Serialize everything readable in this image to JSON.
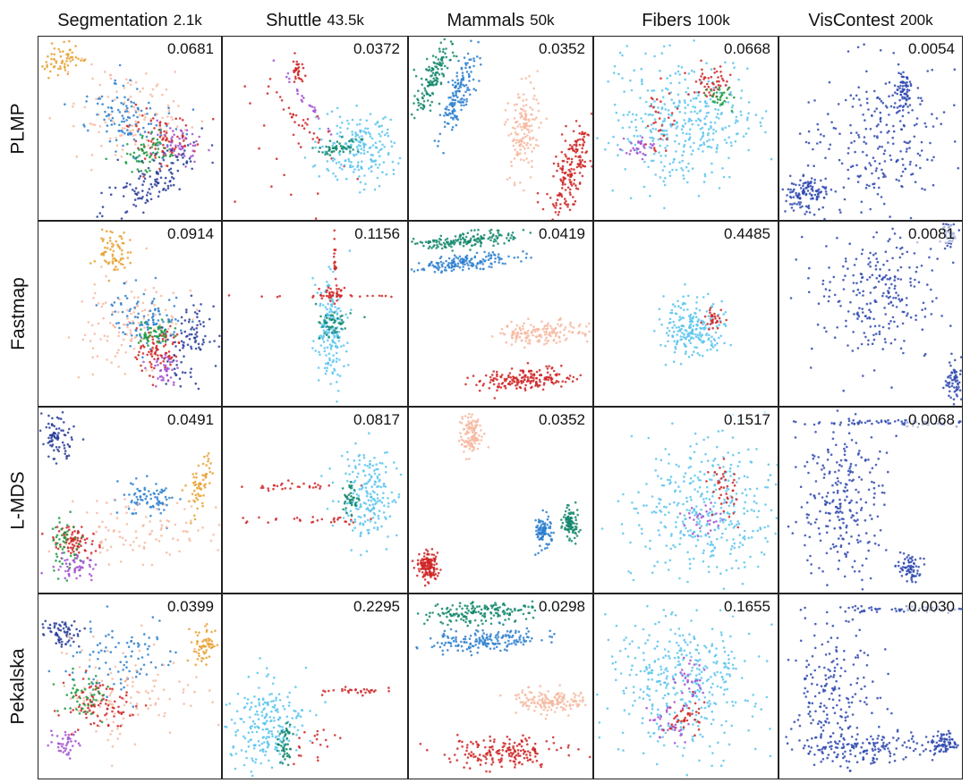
{
  "chart_data": {
    "type": "scatter",
    "columns": [
      {
        "name": "Segmentation",
        "size": "2.1k"
      },
      {
        "name": "Shuttle",
        "size": "43.5k"
      },
      {
        "name": "Mammals",
        "size": "50k"
      },
      {
        "name": "Fibers",
        "size": "100k"
      },
      {
        "name": "VisContest",
        "size": "200k"
      }
    ],
    "rows": [
      "PLMP",
      "Fastmap",
      "L-MDS",
      "Pekalska"
    ],
    "scores": [
      [
        "0.0681",
        "0.0372",
        "0.0352",
        "0.0668",
        "0.0054"
      ],
      [
        "0.0914",
        "0.1156",
        "0.0419",
        "0.4485",
        "0.0081"
      ],
      [
        "0.0491",
        "0.0817",
        "0.0352",
        "0.1517",
        "0.0068"
      ],
      [
        "0.0399",
        "0.2295",
        "0.0298",
        "0.1655",
        "0.0030"
      ]
    ],
    "palette": {
      "orange": "#e8a030",
      "peach": "#f6b9a0",
      "blue": "#2b7fcf",
      "navy": "#273c9a",
      "red": "#cf2424",
      "green": "#1a9a3c",
      "purple": "#a24fd0",
      "teal": "#13876c",
      "skyblue": "#5bc4ee",
      "lightblue": "#7ccfee",
      "darkblue": "#2f49b0"
    },
    "clusters": [
      [
        [
          {
            "c": "orange",
            "x": 0.14,
            "y": 0.12,
            "sx": 0.06,
            "sy": 0.04,
            "r": -0.5,
            "n": 60
          },
          {
            "c": "peach",
            "x": 0.5,
            "y": 0.42,
            "sx": 0.18,
            "sy": 0.14,
            "r": 0.3,
            "n": 120
          },
          {
            "c": "blue",
            "x": 0.48,
            "y": 0.45,
            "sx": 0.12,
            "sy": 0.08,
            "r": 0.3,
            "n": 110
          },
          {
            "c": "red",
            "x": 0.68,
            "y": 0.55,
            "sx": 0.1,
            "sy": 0.07,
            "r": 0.3,
            "n": 80
          },
          {
            "c": "green",
            "x": 0.58,
            "y": 0.62,
            "sx": 0.08,
            "sy": 0.05,
            "r": -0.4,
            "n": 60
          },
          {
            "c": "purple",
            "x": 0.78,
            "y": 0.58,
            "sx": 0.06,
            "sy": 0.05,
            "r": 0,
            "n": 50
          },
          {
            "c": "navy",
            "x": 0.62,
            "y": 0.78,
            "sx": 0.16,
            "sy": 0.05,
            "r": -0.6,
            "n": 120
          }
        ],
        [
          {
            "c": "red",
            "x": 0.4,
            "y": 0.18,
            "sx": 0.02,
            "sy": 0.05,
            "r": -0.3,
            "n": 30
          },
          {
            "c": "red",
            "x": 0.45,
            "y": 0.5,
            "sx": 0.18,
            "sy": 0.015,
            "r": 0.8,
            "n": 30
          },
          {
            "c": "purple",
            "x": 0.45,
            "y": 0.35,
            "sx": 0.15,
            "sy": 0.01,
            "r": 0.9,
            "n": 25
          },
          {
            "c": "skyblue",
            "x": 0.72,
            "y": 0.6,
            "sx": 0.1,
            "sy": 0.1,
            "r": 0.2,
            "n": 200
          },
          {
            "c": "teal",
            "x": 0.62,
            "y": 0.6,
            "sx": 0.06,
            "sy": 0.02,
            "r": -0.2,
            "n": 50
          },
          {
            "c": "red",
            "x": 0.35,
            "y": 0.65,
            "sx": 0.15,
            "sy": 0.2,
            "r": 0,
            "n": 18
          }
        ],
        [
          {
            "c": "teal",
            "x": 0.14,
            "y": 0.2,
            "sx": 0.03,
            "sy": 0.12,
            "r": 0.35,
            "n": 150
          },
          {
            "c": "blue",
            "x": 0.27,
            "y": 0.3,
            "sx": 0.03,
            "sy": 0.13,
            "r": 0.35,
            "n": 150
          },
          {
            "c": "peach",
            "x": 0.62,
            "y": 0.48,
            "sx": 0.04,
            "sy": 0.12,
            "r": 0.1,
            "n": 150
          },
          {
            "c": "red",
            "x": 0.87,
            "y": 0.72,
            "sx": 0.04,
            "sy": 0.14,
            "r": 0.35,
            "n": 180
          }
        ],
        [
          {
            "c": "skyblue",
            "x": 0.48,
            "y": 0.48,
            "sx": 0.2,
            "sy": 0.18,
            "r": 0,
            "n": 380
          },
          {
            "c": "red",
            "x": 0.63,
            "y": 0.25,
            "sx": 0.05,
            "sy": 0.04,
            "r": 0,
            "n": 50
          },
          {
            "c": "green",
            "x": 0.68,
            "y": 0.32,
            "sx": 0.04,
            "sy": 0.03,
            "r": 0,
            "n": 30
          },
          {
            "c": "purple",
            "x": 0.24,
            "y": 0.6,
            "sx": 0.04,
            "sy": 0.03,
            "r": 0,
            "n": 30
          },
          {
            "c": "red",
            "x": 0.35,
            "y": 0.45,
            "sx": 0.04,
            "sy": 0.1,
            "r": 0,
            "n": 30
          }
        ],
        [
          {
            "c": "darkblue",
            "x": 0.52,
            "y": 0.55,
            "sx": 0.18,
            "sy": 0.22,
            "r": 0,
            "n": 250
          },
          {
            "c": "darkblue",
            "x": 0.15,
            "y": 0.85,
            "sx": 0.06,
            "sy": 0.05,
            "r": 0,
            "n": 120
          },
          {
            "c": "darkblue",
            "x": 0.68,
            "y": 0.3,
            "sx": 0.02,
            "sy": 0.06,
            "r": 0,
            "n": 60
          }
        ]
      ],
      [
        [
          {
            "c": "orange",
            "x": 0.4,
            "y": 0.17,
            "sx": 0.04,
            "sy": 0.06,
            "r": 0,
            "n": 70
          },
          {
            "c": "peach",
            "x": 0.5,
            "y": 0.55,
            "sx": 0.14,
            "sy": 0.13,
            "r": 0,
            "n": 120
          },
          {
            "c": "blue",
            "x": 0.6,
            "y": 0.52,
            "sx": 0.1,
            "sy": 0.08,
            "r": 0,
            "n": 100
          },
          {
            "c": "red",
            "x": 0.65,
            "y": 0.68,
            "sx": 0.07,
            "sy": 0.06,
            "r": 0,
            "n": 80
          },
          {
            "c": "green",
            "x": 0.63,
            "y": 0.6,
            "sx": 0.05,
            "sy": 0.04,
            "r": 0,
            "n": 50
          },
          {
            "c": "purple",
            "x": 0.68,
            "y": 0.8,
            "sx": 0.04,
            "sy": 0.04,
            "r": 0,
            "n": 40
          },
          {
            "c": "navy",
            "x": 0.82,
            "y": 0.65,
            "sx": 0.06,
            "sy": 0.1,
            "r": 0.4,
            "n": 90
          }
        ],
        [
          {
            "c": "skyblue",
            "x": 0.58,
            "y": 0.58,
            "sx": 0.04,
            "sy": 0.14,
            "r": 0,
            "n": 180
          },
          {
            "c": "teal",
            "x": 0.59,
            "y": 0.55,
            "sx": 0.04,
            "sy": 0.04,
            "r": 0,
            "n": 50
          },
          {
            "c": "red",
            "x": 0.6,
            "y": 0.38,
            "sx": 0.03,
            "sy": 0.02,
            "r": 0,
            "n": 30
          },
          {
            "c": "red",
            "x": 0.5,
            "y": 0.4,
            "sx": 0.3,
            "sy": 0.005,
            "r": 0,
            "n": 25
          },
          {
            "c": "red",
            "x": 0.6,
            "y": 0.18,
            "sx": 0.005,
            "sy": 0.1,
            "r": 0,
            "n": 20
          }
        ],
        [
          {
            "c": "teal",
            "x": 0.3,
            "y": 0.1,
            "sx": 0.14,
            "sy": 0.02,
            "r": -0.1,
            "n": 160
          },
          {
            "c": "blue",
            "x": 0.3,
            "y": 0.22,
            "sx": 0.14,
            "sy": 0.02,
            "r": -0.1,
            "n": 160
          },
          {
            "c": "peach",
            "x": 0.73,
            "y": 0.6,
            "sx": 0.13,
            "sy": 0.03,
            "r": -0.05,
            "n": 160
          },
          {
            "c": "red",
            "x": 0.62,
            "y": 0.85,
            "sx": 0.13,
            "sy": 0.03,
            "r": -0.05,
            "n": 180
          }
        ],
        [
          {
            "c": "skyblue",
            "x": 0.52,
            "y": 0.57,
            "sx": 0.09,
            "sy": 0.07,
            "r": 0,
            "n": 220
          },
          {
            "c": "red",
            "x": 0.65,
            "y": 0.52,
            "sx": 0.03,
            "sy": 0.03,
            "r": 0,
            "n": 30
          }
        ],
        [
          {
            "c": "darkblue",
            "x": 0.55,
            "y": 0.4,
            "sx": 0.18,
            "sy": 0.18,
            "r": 0,
            "n": 250
          },
          {
            "c": "darkblue",
            "x": 0.95,
            "y": 0.85,
            "sx": 0.02,
            "sy": 0.05,
            "r": 0,
            "n": 60
          },
          {
            "c": "darkblue",
            "x": 0.92,
            "y": 0.05,
            "sx": 0.02,
            "sy": 0.05,
            "r": 0,
            "n": 60
          }
        ]
      ],
      [
        [
          {
            "c": "navy",
            "x": 0.1,
            "y": 0.15,
            "sx": 0.04,
            "sy": 0.06,
            "r": 0,
            "n": 80
          },
          {
            "c": "orange",
            "x": 0.88,
            "y": 0.4,
            "sx": 0.03,
            "sy": 0.08,
            "r": 0.2,
            "n": 60
          },
          {
            "c": "blue",
            "x": 0.6,
            "y": 0.48,
            "sx": 0.08,
            "sy": 0.05,
            "r": 0,
            "n": 80
          },
          {
            "c": "peach",
            "x": 0.55,
            "y": 0.65,
            "sx": 0.22,
            "sy": 0.08,
            "r": 0,
            "n": 100
          },
          {
            "c": "red",
            "x": 0.2,
            "y": 0.72,
            "sx": 0.06,
            "sy": 0.04,
            "r": 0.3,
            "n": 80
          },
          {
            "c": "green",
            "x": 0.15,
            "y": 0.75,
            "sx": 0.04,
            "sy": 0.1,
            "r": 0,
            "n": 50
          },
          {
            "c": "purple",
            "x": 0.2,
            "y": 0.85,
            "sx": 0.06,
            "sy": 0.03,
            "r": 0,
            "n": 50
          }
        ],
        [
          {
            "c": "red",
            "x": 0.4,
            "y": 0.42,
            "sx": 0.14,
            "sy": 0.01,
            "r": 0,
            "n": 30
          },
          {
            "c": "red",
            "x": 0.5,
            "y": 0.6,
            "sx": 0.2,
            "sy": 0.01,
            "r": 0,
            "n": 30
          },
          {
            "c": "skyblue",
            "x": 0.78,
            "y": 0.48,
            "sx": 0.08,
            "sy": 0.12,
            "r": 0,
            "n": 200
          },
          {
            "c": "teal",
            "x": 0.68,
            "y": 0.5,
            "sx": 0.02,
            "sy": 0.05,
            "r": 0,
            "n": 40
          }
        ],
        [
          {
            "c": "peach",
            "x": 0.33,
            "y": 0.14,
            "sx": 0.03,
            "sy": 0.06,
            "r": 0,
            "n": 120
          },
          {
            "c": "blue",
            "x": 0.73,
            "y": 0.66,
            "sx": 0.02,
            "sy": 0.04,
            "r": 0,
            "n": 100
          },
          {
            "c": "teal",
            "x": 0.87,
            "y": 0.62,
            "sx": 0.02,
            "sy": 0.04,
            "r": 0,
            "n": 100
          },
          {
            "c": "red",
            "x": 0.1,
            "y": 0.85,
            "sx": 0.03,
            "sy": 0.04,
            "r": 0,
            "n": 140
          }
        ],
        [
          {
            "c": "skyblue",
            "x": 0.6,
            "y": 0.55,
            "sx": 0.2,
            "sy": 0.18,
            "r": -0.3,
            "n": 380
          },
          {
            "c": "red",
            "x": 0.7,
            "y": 0.45,
            "sx": 0.04,
            "sy": 0.08,
            "r": 0,
            "n": 40
          },
          {
            "c": "purple",
            "x": 0.6,
            "y": 0.6,
            "sx": 0.05,
            "sy": 0.05,
            "r": 0,
            "n": 30
          }
        ],
        [
          {
            "c": "darkblue",
            "x": 0.35,
            "y": 0.5,
            "sx": 0.12,
            "sy": 0.2,
            "r": 0,
            "n": 250
          },
          {
            "c": "darkblue",
            "x": 0.6,
            "y": 0.08,
            "sx": 0.25,
            "sy": 0.01,
            "r": 0,
            "n": 70
          },
          {
            "c": "darkblue",
            "x": 0.7,
            "y": 0.85,
            "sx": 0.03,
            "sy": 0.04,
            "r": 0,
            "n": 70
          }
        ]
      ],
      [
        [
          {
            "c": "navy",
            "x": 0.12,
            "y": 0.2,
            "sx": 0.05,
            "sy": 0.04,
            "r": 0,
            "n": 70
          },
          {
            "c": "orange",
            "x": 0.9,
            "y": 0.28,
            "sx": 0.03,
            "sy": 0.05,
            "r": 0.2,
            "n": 60
          },
          {
            "c": "blue",
            "x": 0.45,
            "y": 0.35,
            "sx": 0.15,
            "sy": 0.12,
            "r": 0,
            "n": 90
          },
          {
            "c": "peach",
            "x": 0.5,
            "y": 0.55,
            "sx": 0.2,
            "sy": 0.15,
            "r": 0,
            "n": 120
          },
          {
            "c": "red",
            "x": 0.32,
            "y": 0.6,
            "sx": 0.1,
            "sy": 0.07,
            "r": 0,
            "n": 90
          },
          {
            "c": "green",
            "x": 0.25,
            "y": 0.55,
            "sx": 0.06,
            "sy": 0.05,
            "r": 0,
            "n": 50
          },
          {
            "c": "purple",
            "x": 0.15,
            "y": 0.8,
            "sx": 0.04,
            "sy": 0.04,
            "r": 0,
            "n": 40
          }
        ],
        [
          {
            "c": "skyblue",
            "x": 0.22,
            "y": 0.7,
            "sx": 0.1,
            "sy": 0.12,
            "r": 0,
            "n": 220
          },
          {
            "c": "teal",
            "x": 0.33,
            "y": 0.8,
            "sx": 0.02,
            "sy": 0.06,
            "r": 0,
            "n": 50
          },
          {
            "c": "red",
            "x": 0.7,
            "y": 0.52,
            "sx": 0.08,
            "sy": 0.01,
            "r": 0,
            "n": 30
          },
          {
            "c": "red",
            "x": 0.5,
            "y": 0.8,
            "sx": 0.06,
            "sy": 0.06,
            "r": 0,
            "n": 20
          }
        ],
        [
          {
            "c": "teal",
            "x": 0.4,
            "y": 0.1,
            "sx": 0.16,
            "sy": 0.03,
            "r": -0.05,
            "n": 170
          },
          {
            "c": "blue",
            "x": 0.4,
            "y": 0.25,
            "sx": 0.15,
            "sy": 0.03,
            "r": -0.05,
            "n": 170
          },
          {
            "c": "peach",
            "x": 0.78,
            "y": 0.57,
            "sx": 0.1,
            "sy": 0.03,
            "r": 0,
            "n": 160
          },
          {
            "c": "red",
            "x": 0.5,
            "y": 0.85,
            "sx": 0.16,
            "sy": 0.04,
            "r": 0,
            "n": 180
          }
        ],
        [
          {
            "c": "skyblue",
            "x": 0.48,
            "y": 0.45,
            "sx": 0.2,
            "sy": 0.2,
            "r": 0,
            "n": 400
          },
          {
            "c": "red",
            "x": 0.48,
            "y": 0.65,
            "sx": 0.05,
            "sy": 0.06,
            "r": 0,
            "n": 40
          },
          {
            "c": "purple",
            "x": 0.4,
            "y": 0.7,
            "sx": 0.06,
            "sy": 0.05,
            "r": 0,
            "n": 30
          },
          {
            "c": "purple",
            "x": 0.52,
            "y": 0.45,
            "sx": 0.04,
            "sy": 0.06,
            "r": 0,
            "n": 30
          }
        ],
        [
          {
            "c": "darkblue",
            "x": 0.3,
            "y": 0.55,
            "sx": 0.12,
            "sy": 0.18,
            "r": 0,
            "n": 200
          },
          {
            "c": "darkblue",
            "x": 0.5,
            "y": 0.83,
            "sx": 0.2,
            "sy": 0.04,
            "r": 0,
            "n": 150
          },
          {
            "c": "darkblue",
            "x": 0.72,
            "y": 0.08,
            "sx": 0.25,
            "sy": 0.01,
            "r": 0,
            "n": 70
          },
          {
            "c": "darkblue",
            "x": 0.88,
            "y": 0.8,
            "sx": 0.04,
            "sy": 0.03,
            "r": 0,
            "n": 70
          }
        ]
      ]
    ]
  }
}
